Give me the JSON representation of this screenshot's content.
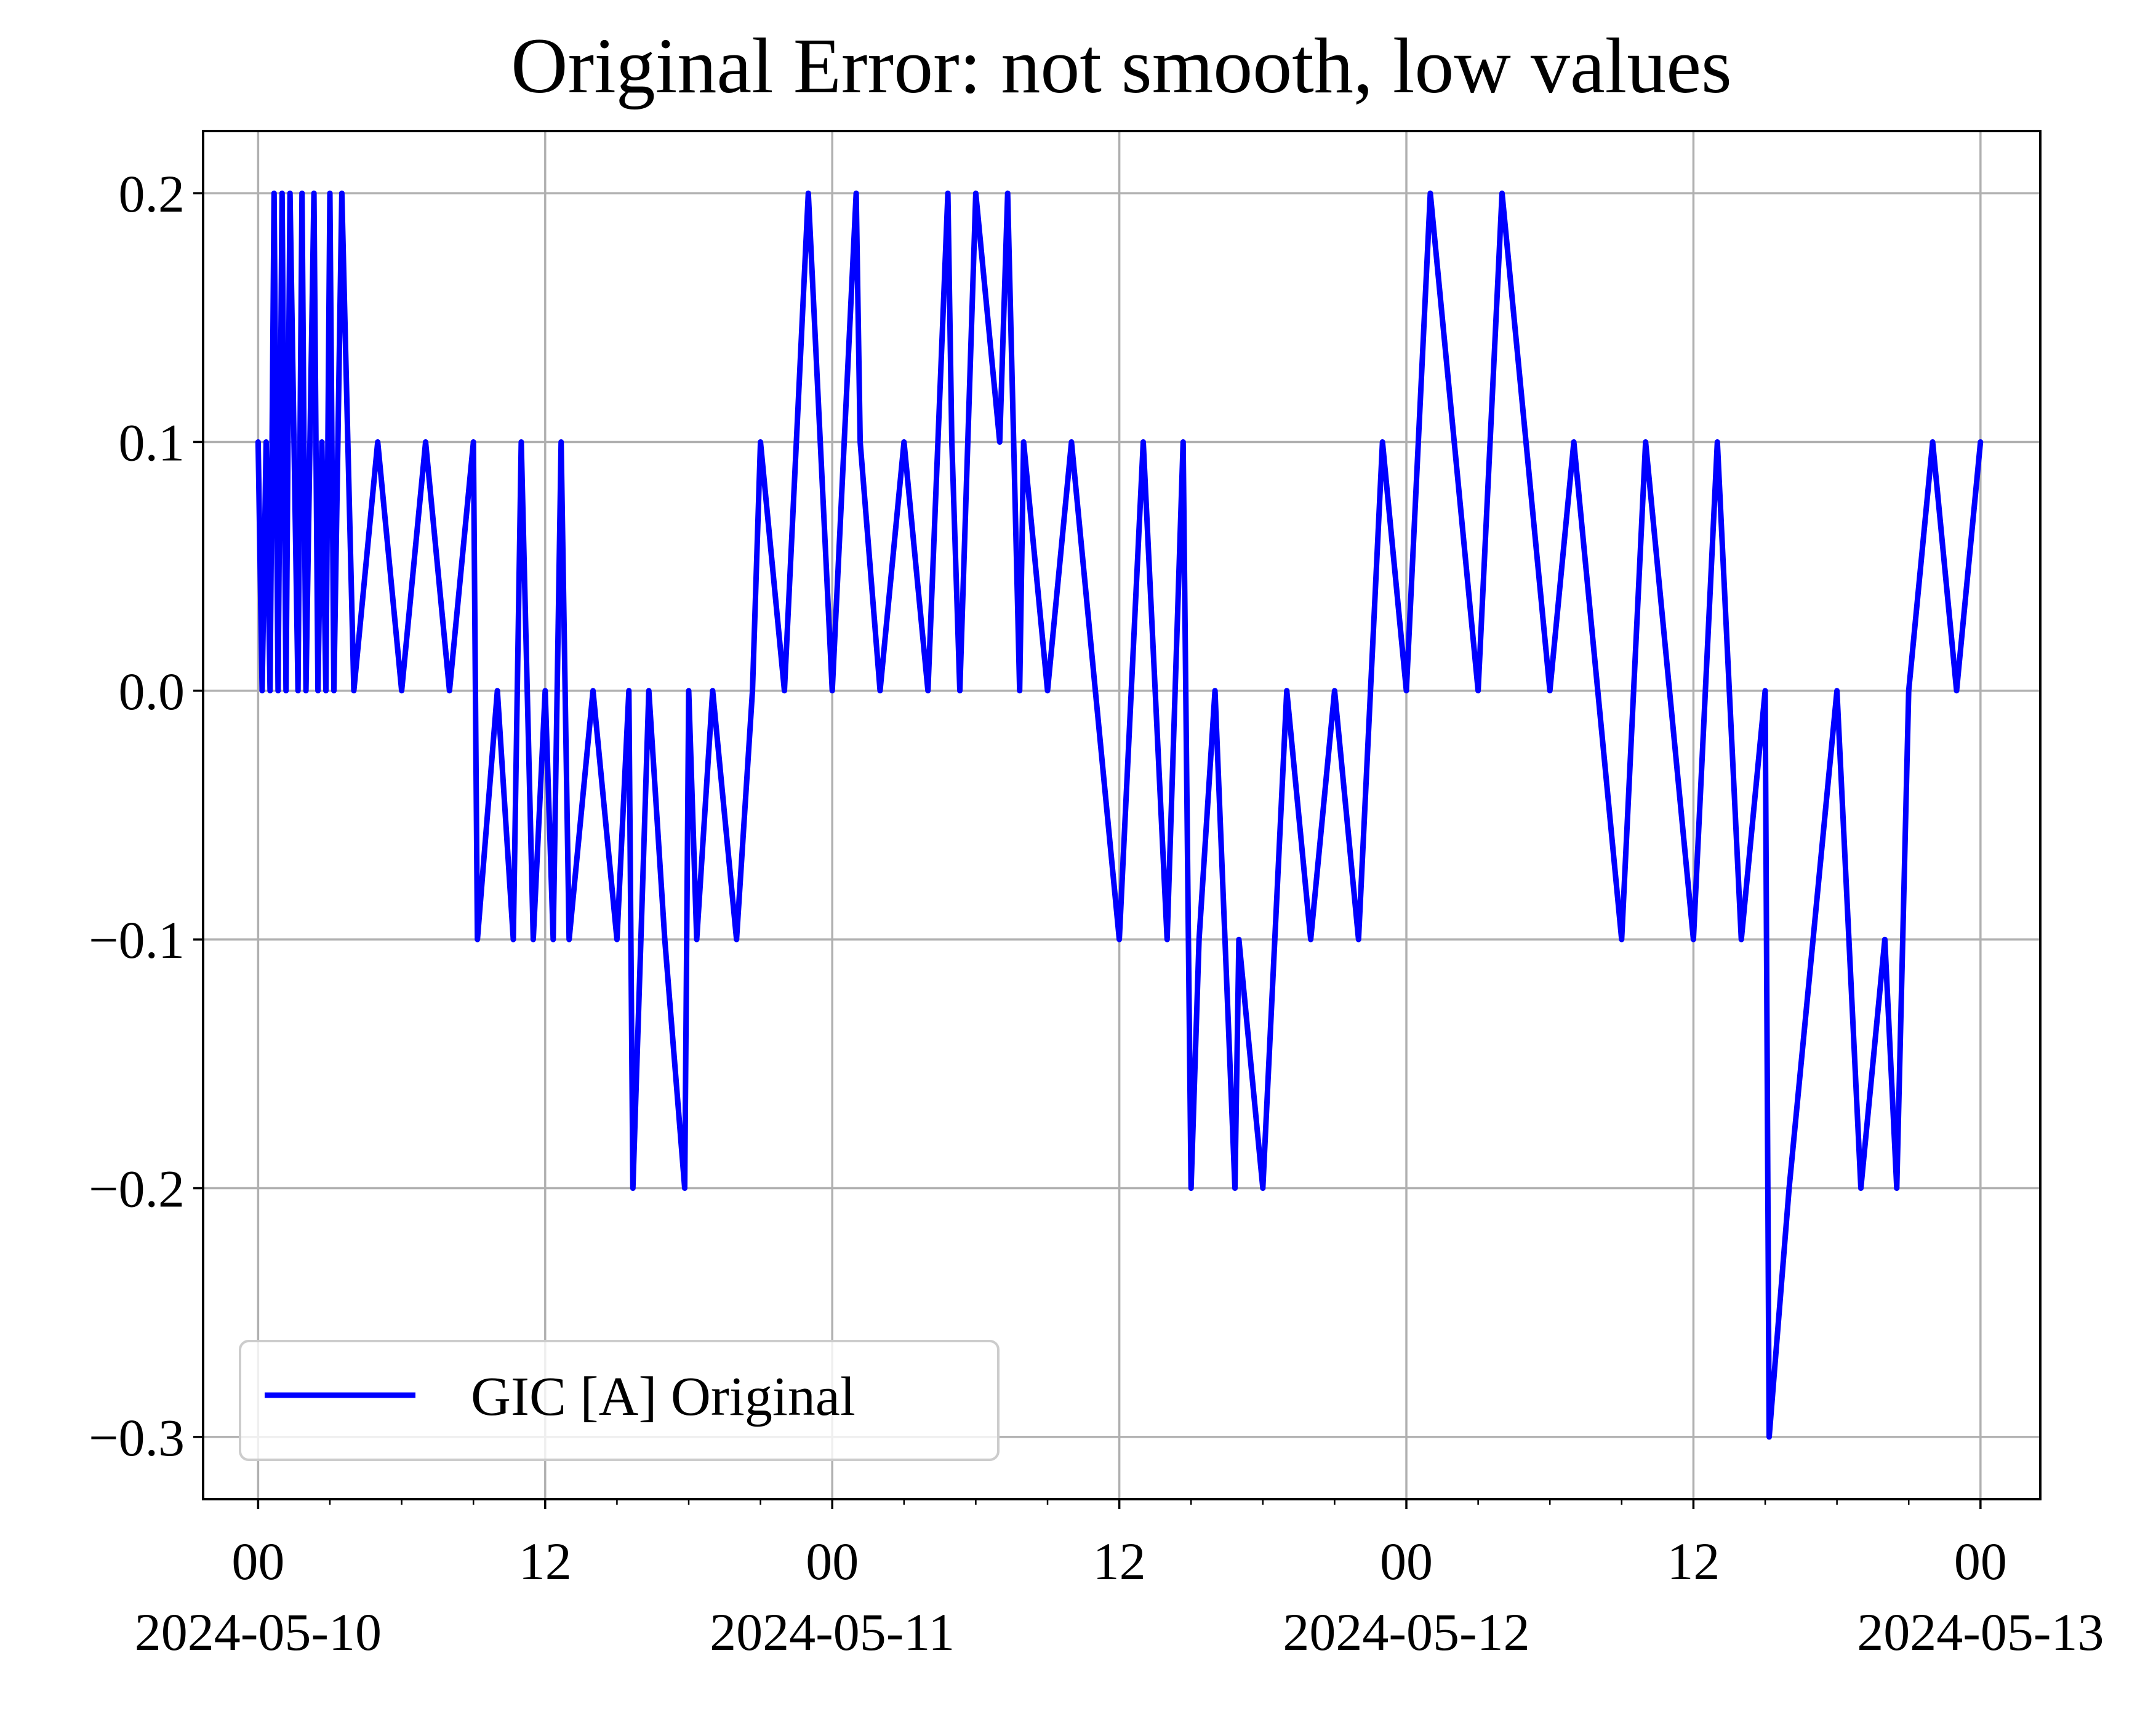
{
  "chart_data": {
    "type": "line",
    "title": "Original Error: not smooth, low values",
    "xlabel": "",
    "ylabel": "",
    "xlim": [
      "2024-05-09T21:42",
      "2024-05-13T02:30"
    ],
    "ylim": [
      -0.325,
      0.225
    ],
    "x_ticks": [
      {
        "value": "2024-05-10T00:00",
        "label": "00",
        "sublabel": "2024-05-10"
      },
      {
        "value": "2024-05-10T12:00",
        "label": "12",
        "sublabel": ""
      },
      {
        "value": "2024-05-11T00:00",
        "label": "00",
        "sublabel": "2024-05-11"
      },
      {
        "value": "2024-05-11T12:00",
        "label": "12",
        "sublabel": ""
      },
      {
        "value": "2024-05-12T00:00",
        "label": "00",
        "sublabel": "2024-05-12"
      },
      {
        "value": "2024-05-12T12:00",
        "label": "12",
        "sublabel": ""
      },
      {
        "value": "2024-05-13T00:00",
        "label": "00",
        "sublabel": "2024-05-13"
      }
    ],
    "y_ticks": [
      {
        "value": 0.2,
        "label": "0.2"
      },
      {
        "value": 0.1,
        "label": "0.1"
      },
      {
        "value": 0.0,
        "label": "0.0"
      },
      {
        "value": -0.1,
        "label": "−0.1"
      },
      {
        "value": -0.2,
        "label": "−0.2"
      },
      {
        "value": -0.3,
        "label": "−0.3"
      }
    ],
    "grid": true,
    "legend": {
      "placement": "lower-left",
      "entries": [
        "GIC [A] Original"
      ]
    },
    "series": [
      {
        "name": "GIC [A] Original",
        "color": "#0000ff",
        "x": [
          "2024-05-10T00:00",
          "2024-05-10T00:10",
          "2024-05-10T00:20",
          "2024-05-10T00:30",
          "2024-05-10T00:40",
          "2024-05-10T00:50",
          "2024-05-10T01:00",
          "2024-05-10T01:10",
          "2024-05-10T01:20",
          "2024-05-10T01:30",
          "2024-05-10T01:40",
          "2024-05-10T01:50",
          "2024-05-10T02:00",
          "2024-05-10T02:10",
          "2024-05-10T02:20",
          "2024-05-10T02:30",
          "2024-05-10T02:40",
          "2024-05-10T02:50",
          "2024-05-10T03:00",
          "2024-05-10T03:10",
          "2024-05-10T03:20",
          "2024-05-10T03:30",
          "2024-05-10T04:00",
          "2024-05-10T05:00",
          "2024-05-10T06:00",
          "2024-05-10T07:00",
          "2024-05-10T08:00",
          "2024-05-10T09:00",
          "2024-05-10T09:10",
          "2024-05-10T10:00",
          "2024-05-10T10:40",
          "2024-05-10T11:00",
          "2024-05-10T11:30",
          "2024-05-10T12:00",
          "2024-05-10T12:20",
          "2024-05-10T12:40",
          "2024-05-10T13:00",
          "2024-05-10T14:00",
          "2024-05-10T15:00",
          "2024-05-10T15:30",
          "2024-05-10T15:40",
          "2024-05-10T16:00",
          "2024-05-10T16:20",
          "2024-05-10T17:00",
          "2024-05-10T17:50",
          "2024-05-10T18:00",
          "2024-05-10T18:20",
          "2024-05-10T19:00",
          "2024-05-10T20:00",
          "2024-05-10T20:40",
          "2024-05-10T21:00",
          "2024-05-10T22:00",
          "2024-05-10T23:00",
          "2024-05-11T00:00",
          "2024-05-11T01:00",
          "2024-05-11T01:10",
          "2024-05-11T02:00",
          "2024-05-11T03:00",
          "2024-05-11T04:00",
          "2024-05-11T04:50",
          "2024-05-11T05:00",
          "2024-05-11T05:20",
          "2024-05-11T06:00",
          "2024-05-11T07:00",
          "2024-05-11T07:20",
          "2024-05-11T07:50",
          "2024-05-11T08:00",
          "2024-05-11T09:00",
          "2024-05-11T10:00",
          "2024-05-11T11:00",
          "2024-05-11T12:00",
          "2024-05-11T13:00",
          "2024-05-11T14:00",
          "2024-05-11T14:40",
          "2024-05-11T15:00",
          "2024-05-11T15:20",
          "2024-05-11T16:00",
          "2024-05-11T16:50",
          "2024-05-11T17:00",
          "2024-05-11T18:00",
          "2024-05-11T19:00",
          "2024-05-11T20:00",
          "2024-05-11T21:00",
          "2024-05-11T22:00",
          "2024-05-11T23:00",
          "2024-05-12T00:00",
          "2024-05-12T01:00",
          "2024-05-12T02:00",
          "2024-05-12T03:00",
          "2024-05-12T04:00",
          "2024-05-12T05:00",
          "2024-05-12T06:00",
          "2024-05-12T07:00",
          "2024-05-12T08:00",
          "2024-05-12T09:00",
          "2024-05-12T10:00",
          "2024-05-12T11:00",
          "2024-05-12T12:00",
          "2024-05-12T13:00",
          "2024-05-12T14:00",
          "2024-05-12T15:00",
          "2024-05-12T15:10",
          "2024-05-12T16:00",
          "2024-05-12T17:00",
          "2024-05-12T18:00",
          "2024-05-12T19:00",
          "2024-05-12T20:00",
          "2024-05-12T20:30",
          "2024-05-12T21:00",
          "2024-05-12T22:00",
          "2024-05-12T23:00",
          "2024-05-13T00:00"
        ],
        "values": [
          0.1,
          0.0,
          0.1,
          0.0,
          0.2,
          0.0,
          0.2,
          0.0,
          0.2,
          0.1,
          0.0,
          0.2,
          0.0,
          0.1,
          0.2,
          0.0,
          0.1,
          0.0,
          0.2,
          0.0,
          0.1,
          0.2,
          0.0,
          0.1,
          0.0,
          0.1,
          0.0,
          0.1,
          -0.1,
          0.0,
          -0.1,
          0.1,
          -0.1,
          0.0,
          -0.1,
          0.1,
          -0.1,
          0.0,
          -0.1,
          0.0,
          -0.2,
          -0.1,
          0.0,
          -0.1,
          -0.2,
          0.0,
          -0.1,
          0.0,
          -0.1,
          0.0,
          0.1,
          0.0,
          0.2,
          0.0,
          0.2,
          0.1,
          0.0,
          0.1,
          0.0,
          0.2,
          0.1,
          0.0,
          0.2,
          0.1,
          0.2,
          0.0,
          0.1,
          0.0,
          0.1,
          0.0,
          -0.1,
          0.1,
          -0.1,
          0.1,
          -0.2,
          -0.1,
          0.0,
          -0.2,
          -0.1,
          -0.2,
          0.0,
          -0.1,
          0.0,
          -0.1,
          0.1,
          0.0,
          0.2,
          0.1,
          0.0,
          0.2,
          0.1,
          0.0,
          0.1,
          0.0,
          -0.1,
          0.1,
          0.0,
          -0.1,
          0.1,
          -0.1,
          0.0,
          -0.3,
          -0.2,
          -0.1,
          0.0,
          -0.2,
          -0.1,
          -0.2,
          0.0,
          0.1,
          0.0,
          0.1
        ]
      }
    ]
  }
}
